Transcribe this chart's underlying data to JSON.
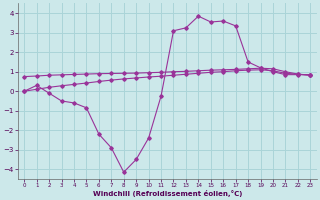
{
  "xlabel": "Windchill (Refroidissement éolien,°C)",
  "bg_color": "#cce8ea",
  "grid_color": "#aad4d8",
  "line_color": "#993399",
  "xlim": [
    -0.5,
    23.5
  ],
  "ylim": [
    -4.5,
    4.5
  ],
  "xticks": [
    0,
    1,
    2,
    3,
    4,
    5,
    6,
    7,
    8,
    9,
    10,
    11,
    12,
    13,
    14,
    15,
    16,
    17,
    18,
    19,
    20,
    21,
    22,
    23
  ],
  "yticks": [
    -4,
    -3,
    -2,
    -1,
    0,
    1,
    2,
    3,
    4
  ],
  "line1_x": [
    0,
    1,
    2,
    3,
    4,
    5,
    6,
    7,
    8,
    9,
    10,
    11,
    12,
    13,
    14,
    15,
    16,
    17,
    18,
    19,
    20,
    21,
    22,
    23
  ],
  "line1_y": [
    0.0,
    0.3,
    -0.1,
    -0.5,
    -0.6,
    -0.85,
    -2.2,
    -2.9,
    -4.15,
    -3.5,
    -2.4,
    -0.25,
    3.1,
    3.25,
    3.85,
    3.55,
    3.6,
    3.35,
    1.5,
    1.2,
    1.0,
    0.85,
    0.85,
    0.85
  ],
  "line2_x": [
    0,
    1,
    2,
    3,
    4,
    5,
    6,
    7,
    8,
    9,
    10,
    11,
    12,
    13,
    14,
    15,
    16,
    17,
    18,
    19,
    20,
    21,
    22,
    23
  ],
  "line2_y": [
    0.0,
    0.1,
    0.2,
    0.28,
    0.35,
    0.42,
    0.5,
    0.57,
    0.63,
    0.68,
    0.73,
    0.77,
    0.82,
    0.87,
    0.92,
    0.97,
    1.0,
    1.05,
    1.08,
    1.1,
    1.05,
    0.92,
    0.87,
    0.82
  ],
  "line3_x": [
    0,
    1,
    2,
    3,
    4,
    5,
    6,
    7,
    8,
    9,
    10,
    11,
    12,
    13,
    14,
    15,
    16,
    17,
    18,
    19,
    20,
    21,
    22,
    23
  ],
  "line3_y": [
    0.75,
    0.78,
    0.82,
    0.84,
    0.86,
    0.88,
    0.9,
    0.91,
    0.92,
    0.93,
    0.95,
    0.97,
    1.0,
    1.02,
    1.05,
    1.08,
    1.1,
    1.12,
    1.15,
    1.18,
    1.15,
    1.0,
    0.88,
    0.82
  ]
}
